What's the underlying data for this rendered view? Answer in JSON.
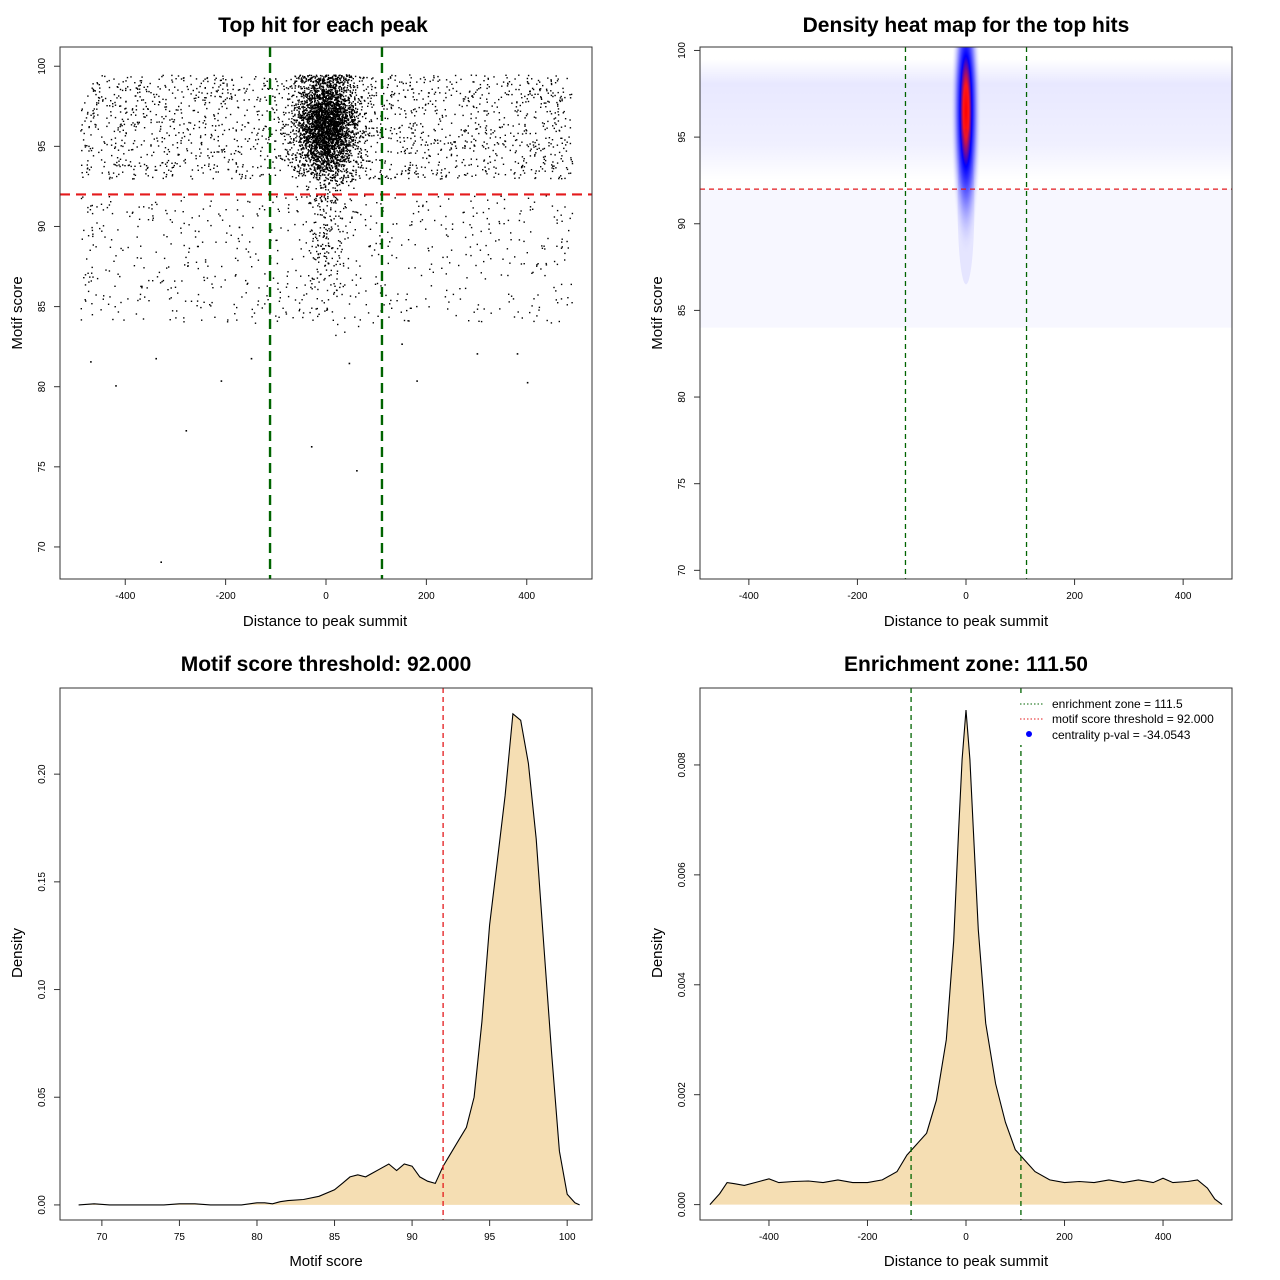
{
  "colors": {
    "scatter_point": "#000000",
    "threshold_line": "#e41a1c",
    "zone_line": "#006400",
    "density_fill": "#f5deb3",
    "heat_low": "#ffffff",
    "heat_mid": "#0000ff",
    "heat_high": "#ff0000",
    "legend_dot": "#0000ff"
  },
  "chart_data": [
    {
      "type": "scatter",
      "title": "Top hit for each peak",
      "xlabel": "Distance to peak summit",
      "ylabel": "Motif score",
      "xlim": [
        -530,
        530
      ],
      "ylim": [
        68,
        101.2
      ],
      "xticks": [
        -400,
        -200,
        0,
        200,
        400
      ],
      "yticks": [
        70,
        75,
        80,
        85,
        90,
        95,
        100
      ],
      "hlines": [
        {
          "y": 92.0,
          "color": "threshold_line"
        }
      ],
      "vlines": [
        {
          "x": -111.5,
          "color": "zone_line"
        },
        {
          "x": 111.5,
          "color": "zone_line"
        }
      ],
      "point_clouds": [
        {
          "n": 1800,
          "x_range": [
            -490,
            490
          ],
          "y_range": [
            93,
            99.5
          ],
          "shape": "uniform"
        },
        {
          "n": 3800,
          "x_mean": 0,
          "x_sd": 30,
          "y_mean": 96.3,
          "y_sd": 1.6,
          "y_max": 99.5,
          "shape": "gaussian"
        },
        {
          "n": 650,
          "x_range": [
            -490,
            490
          ],
          "y_range": [
            84,
            92
          ],
          "shape": "uniform"
        },
        {
          "n": 180,
          "x_mean": 0,
          "x_sd": 20,
          "y_mean": 89.5,
          "y_sd": 2.5,
          "y_max": 92,
          "shape": "gaussian"
        }
      ],
      "outliers": [
        {
          "x": -330,
          "y": 69.1
        },
        {
          "x": -280,
          "y": 77.3
        },
        {
          "x": -420,
          "y": 80.1
        },
        {
          "x": -210,
          "y": 80.4
        },
        {
          "x": -30,
          "y": 76.3
        },
        {
          "x": 60,
          "y": 74.8
        },
        {
          "x": 400,
          "y": 80.3
        },
        {
          "x": 180,
          "y": 80.4
        },
        {
          "x": -470,
          "y": 81.6
        },
        {
          "x": -340,
          "y": 81.8
        },
        {
          "x": 45,
          "y": 81.5
        },
        {
          "x": 300,
          "y": 82.1
        },
        {
          "x": -150,
          "y": 81.8
        },
        {
          "x": 150,
          "y": 82.7
        },
        {
          "x": 380,
          "y": 82.1
        }
      ]
    },
    {
      "type": "heatmap",
      "title": "Density heat map for the top hits",
      "xlabel": "Distance to peak summit",
      "ylabel": "Motif score",
      "xlim": [
        -490,
        490
      ],
      "ylim": [
        69.5,
        100.2
      ],
      "xticks": [
        -400,
        -200,
        0,
        200,
        400
      ],
      "yticks": [
        70,
        75,
        80,
        85,
        90,
        95,
        100
      ],
      "hlines": [
        {
          "y": 92.0,
          "color": "threshold_line"
        }
      ],
      "vlines": [
        {
          "x": -111.5,
          "color": "zone_line"
        },
        {
          "x": 111.5,
          "color": "zone_line"
        }
      ],
      "hotspot": {
        "x": 0,
        "y": 96.5,
        "sx": 22,
        "sy": 2.0
      }
    },
    {
      "type": "area",
      "title": "Motif score threshold: 92.000",
      "xlabel": "Motif score",
      "ylabel": "Density",
      "xlim": [
        67.3,
        101.6
      ],
      "ylim": [
        -0.007,
        0.24
      ],
      "xticks": [
        70,
        75,
        80,
        85,
        90,
        95,
        100
      ],
      "yticks": [
        0.0,
        0.05,
        0.1,
        0.15,
        0.2
      ],
      "ytick_labels": [
        "0.00",
        "0.05",
        "0.10",
        "0.15",
        "0.20"
      ],
      "vlines": [
        {
          "x": 92.0,
          "color": "threshold_line"
        }
      ],
      "x": [
        68.5,
        69.5,
        70.5,
        72,
        74,
        75,
        76,
        77,
        78,
        79,
        80,
        80.5,
        81,
        81.5,
        82,
        83,
        84,
        85,
        85.5,
        86,
        86.5,
        87,
        87.5,
        88,
        88.5,
        89,
        89.5,
        90,
        90.5,
        91,
        91.5,
        92,
        92.5,
        93,
        93.5,
        94,
        94.5,
        95,
        95.5,
        96,
        96.5,
        97,
        97.5,
        98,
        98.5,
        99,
        99.5,
        100,
        100.5,
        100.8
      ],
      "values": [
        0,
        0.0005,
        0,
        0,
        0,
        0.0005,
        0.0005,
        0,
        0,
        0,
        0.001,
        0.001,
        0.0005,
        0.0015,
        0.002,
        0.0025,
        0.004,
        0.007,
        0.01,
        0.013,
        0.014,
        0.013,
        0.015,
        0.017,
        0.019,
        0.016,
        0.019,
        0.018,
        0.013,
        0.011,
        0.01,
        0.018,
        0.024,
        0.03,
        0.036,
        0.05,
        0.085,
        0.13,
        0.16,
        0.19,
        0.228,
        0.225,
        0.205,
        0.17,
        0.12,
        0.07,
        0.025,
        0.005,
        0.001,
        0
      ]
    },
    {
      "type": "area",
      "title": "Enrichment zone: 111.50",
      "xlabel": "Distance to peak summit",
      "ylabel": "Density",
      "xlim": [
        -540,
        540
      ],
      "ylim": [
        -0.00028,
        0.0094
      ],
      "xticks": [
        -400,
        -200,
        0,
        200,
        400
      ],
      "yticks": [
        0.0,
        0.002,
        0.004,
        0.006,
        0.008
      ],
      "ytick_labels": [
        "0.000",
        "0.002",
        "0.004",
        "0.006",
        "0.008"
      ],
      "vlines": [
        {
          "x": -111.5,
          "color": "zone_line"
        },
        {
          "x": 111.5,
          "color": "zone_line"
        }
      ],
      "x": [
        -520,
        -500,
        -485,
        -470,
        -450,
        -420,
        -400,
        -380,
        -350,
        -320,
        -290,
        -260,
        -230,
        -200,
        -170,
        -140,
        -120,
        -100,
        -80,
        -60,
        -40,
        -25,
        -15,
        -8,
        0,
        8,
        15,
        25,
        40,
        60,
        80,
        100,
        120,
        140,
        170,
        200,
        230,
        260,
        290,
        320,
        350,
        380,
        400,
        420,
        450,
        470,
        490,
        505,
        520
      ],
      "values": [
        0,
        0.0002,
        0.0004,
        0.00038,
        0.00035,
        0.00042,
        0.00047,
        0.0004,
        0.00042,
        0.00043,
        0.0004,
        0.00045,
        0.0004,
        0.0004,
        0.00045,
        0.0006,
        0.0009,
        0.0011,
        0.0013,
        0.0019,
        0.003,
        0.0048,
        0.0068,
        0.0081,
        0.009,
        0.0081,
        0.0068,
        0.005,
        0.0033,
        0.0022,
        0.0015,
        0.001,
        0.0008,
        0.0006,
        0.00045,
        0.0004,
        0.00042,
        0.0004,
        0.00045,
        0.0004,
        0.00045,
        0.0004,
        0.00048,
        0.0004,
        0.00042,
        0.00045,
        0.0003,
        0.0001,
        0
      ],
      "legend": {
        "position": "top-right",
        "entries": [
          {
            "label": "enrichment zone = 111.5",
            "style": "dotted-line",
            "color": "zone_line"
          },
          {
            "label": "motif score threshold = 92.000",
            "style": "dotted-line",
            "color": "threshold_line"
          },
          {
            "label": "centrality p-val = -34.0543",
            "style": "dot",
            "color": "legend_dot"
          }
        ]
      }
    }
  ]
}
